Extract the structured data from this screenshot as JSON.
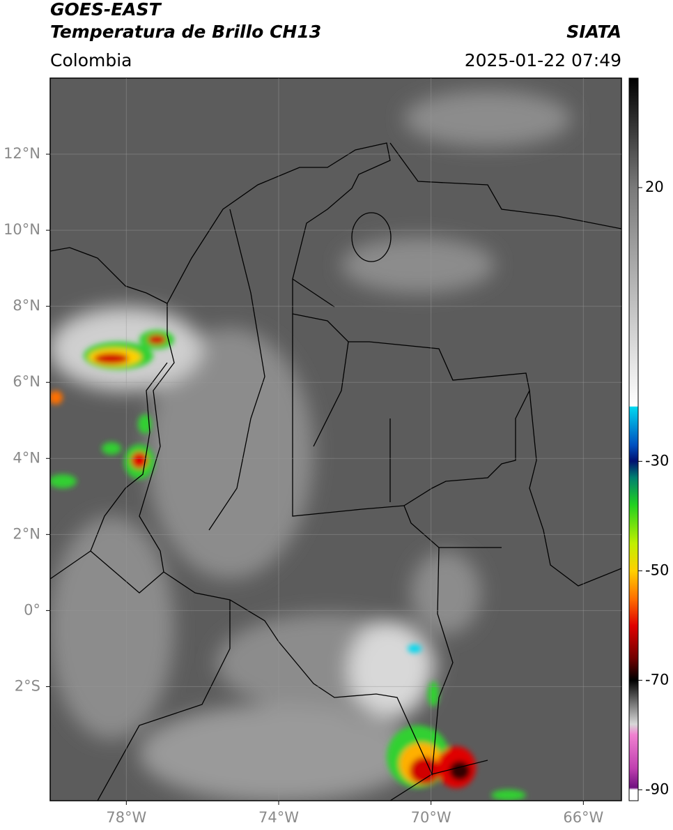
{
  "header": {
    "title": "GOES-EAST",
    "subtitle": "Temperatura de Brillo CH13",
    "source": "SIATA",
    "region": "Colombia",
    "datetime": "2025-01-22 07:49"
  },
  "map": {
    "xlim": [
      -80,
      -65
    ],
    "ylim": [
      -5,
      14
    ],
    "grid": true,
    "xticks": [
      {
        "value": -78,
        "label": "78°W"
      },
      {
        "value": -74,
        "label": "74°W"
      },
      {
        "value": -70,
        "label": "70°W"
      },
      {
        "value": -66,
        "label": "66°W"
      }
    ],
    "yticks": [
      {
        "value": 12,
        "label": "12°N"
      },
      {
        "value": 10,
        "label": "10°N"
      },
      {
        "value": 8,
        "label": "8°N"
      },
      {
        "value": 6,
        "label": "6°N"
      },
      {
        "value": 4,
        "label": "4°N"
      },
      {
        "value": 2,
        "label": "2°N"
      },
      {
        "value": 0,
        "label": "0°"
      },
      {
        "value": -2,
        "label": "2°S"
      }
    ]
  },
  "colorbar": {
    "lim": [
      -92,
      40
    ],
    "ticks": [
      20,
      -30,
      -50,
      -70,
      -90
    ]
  }
}
